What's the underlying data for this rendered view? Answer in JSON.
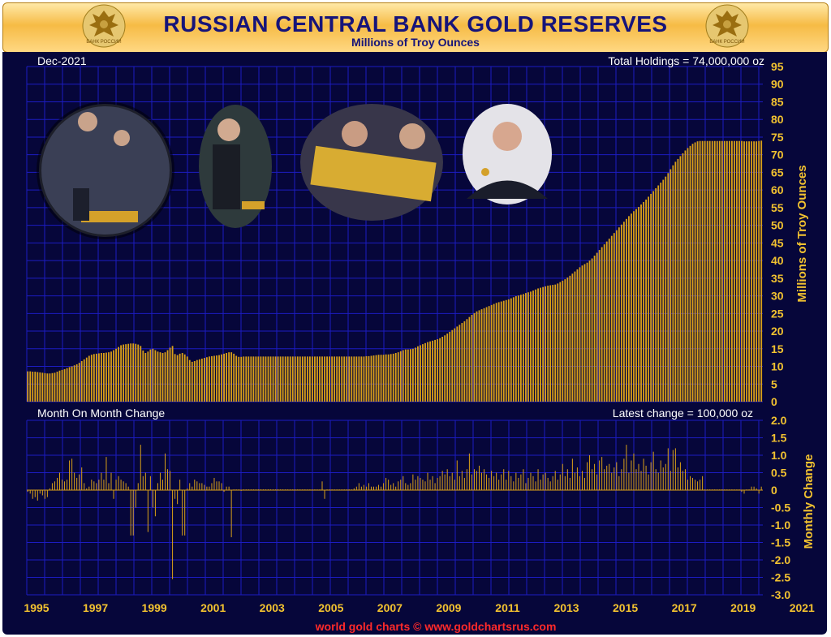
{
  "header": {
    "title": "RUSSIAN CENTRAL BANK GOLD RESERVES",
    "subtitle": "Millions of Troy Ounces",
    "seal_left_text": "БАНК РОССИИ",
    "seal_right_text": "БАНК РОССИИ"
  },
  "annotations": {
    "date": "Dec-2021",
    "total_holdings": "Total Holdings = 74,000,000 oz",
    "panel2_title": "Month On Month Change",
    "latest_change": "Latest change = 100,000 oz",
    "footer": "world gold charts © www.goldchartsrus.com"
  },
  "colors": {
    "bar": "#d9a018",
    "background": "#06063a",
    "grid": "#1c1cc2",
    "tick": "#f2c230",
    "footer": "#ff2a2a"
  },
  "photos": [
    {
      "name": "photo-1",
      "description_icon": "officials-with-gold-bars"
    },
    {
      "name": "photo-2",
      "description_icon": "official-with-gold-bar"
    },
    {
      "name": "photo-3",
      "description_icon": "officials-gold-bar-closeup"
    },
    {
      "name": "photo-4",
      "description_icon": "official-with-gold-coin"
    }
  ],
  "chart_data": [
    {
      "type": "bar",
      "ylabel": "Millions of Troy Ounces",
      "ylim": [
        0,
        95
      ],
      "yticks": [
        "0",
        "5",
        "10",
        "15",
        "20",
        "25",
        "30",
        "35",
        "40",
        "45",
        "50",
        "55",
        "60",
        "65",
        "70",
        "75",
        "80",
        "85",
        "90",
        "95"
      ],
      "xticks": [
        "1995",
        "1997",
        "1999",
        "2001",
        "2003",
        "2005",
        "2007",
        "2009",
        "2011",
        "2013",
        "2015",
        "2017",
        "2019",
        "2021"
      ],
      "x_start": "1995-01",
      "x_end": "2021-12",
      "grid": true,
      "series": [
        {
          "values": [
            8.6,
            8.6,
            8.5,
            8.5,
            8.4,
            8.3,
            8.2,
            8.1,
            8.0,
            8.0,
            8.1,
            8.2,
            8.5,
            8.8,
            9.0,
            9.2,
            9.5,
            9.8,
            10.0,
            10.3,
            10.6,
            11.0,
            11.5,
            12.0,
            12.5,
            13.0,
            13.3,
            13.5,
            13.6,
            13.7,
            13.8,
            13.8,
            13.9,
            14.0,
            14.2,
            14.6,
            15.0,
            15.5,
            16.0,
            16.2,
            16.3,
            16.4,
            16.5,
            16.5,
            16.4,
            16.2,
            15.8,
            14.5,
            13.8,
            14.2,
            14.8,
            15.0,
            14.6,
            14.2,
            14.0,
            13.8,
            14.0,
            14.6,
            15.3,
            15.8,
            13.5,
            13.2,
            13.6,
            13.8,
            13.4,
            12.8,
            11.8,
            11.3,
            11.5,
            11.8,
            12.0,
            12.2,
            12.4,
            12.6,
            12.8,
            12.9,
            13.0,
            13.1,
            13.2,
            13.4,
            13.6,
            13.8,
            14.0,
            14.0,
            13.6,
            13.0,
            12.7,
            12.7,
            12.8,
            12.8,
            12.8,
            12.8,
            12.8,
            12.8,
            12.8,
            12.8,
            12.8,
            12.8,
            12.8,
            12.8,
            12.8,
            12.8,
            12.8,
            12.8,
            12.8,
            12.8,
            12.8,
            12.8,
            12.8,
            12.8,
            12.8,
            12.8,
            12.8,
            12.8,
            12.8,
            12.8,
            12.8,
            12.8,
            12.8,
            12.8,
            12.8,
            12.8,
            12.8,
            12.8,
            12.8,
            12.8,
            12.8,
            12.8,
            12.8,
            12.8,
            12.8,
            12.8,
            12.8,
            12.8,
            12.8,
            12.8,
            12.8,
            12.8,
            12.9,
            12.9,
            13.0,
            13.1,
            13.2,
            13.3,
            13.3,
            13.3,
            13.4,
            13.4,
            13.5,
            13.6,
            13.8,
            14.0,
            14.3,
            14.6,
            14.8,
            14.8,
            14.9,
            15.0,
            15.3,
            15.7,
            16.0,
            16.3,
            16.6,
            16.9,
            17.1,
            17.3,
            17.5,
            17.7,
            18.0,
            18.4,
            18.8,
            19.3,
            19.8,
            20.3,
            20.8,
            21.3,
            21.8,
            22.3,
            22.8,
            23.4,
            24.0,
            24.6,
            25.1,
            25.6,
            25.9,
            26.2,
            26.5,
            26.8,
            27.1,
            27.4,
            27.7,
            28.0,
            28.2,
            28.4,
            28.6,
            28.8,
            29.0,
            29.3,
            29.6,
            29.9,
            30.1,
            30.3,
            30.5,
            30.8,
            31.0,
            31.2,
            31.5,
            31.8,
            32.1,
            32.3,
            32.5,
            32.7,
            32.9,
            33.0,
            33.1,
            33.2,
            33.5,
            33.9,
            34.3,
            34.7,
            35.2,
            35.7,
            36.3,
            36.9,
            37.5,
            38.1,
            38.6,
            39.0,
            39.4,
            40.0,
            40.6,
            41.4,
            42.2,
            43.0,
            43.8,
            44.6,
            45.4,
            46.2,
            47.0,
            47.8,
            48.6,
            49.4,
            50.2,
            51.0,
            51.8,
            52.6,
            53.3,
            54.0,
            54.6,
            55.2,
            55.9,
            56.6,
            57.3,
            58.1,
            58.9,
            59.7,
            60.5,
            61.3,
            62.1,
            62.9,
            63.8,
            64.8,
            65.9,
            67.0,
            68.0,
            68.8,
            69.6,
            70.4,
            71.2,
            71.9,
            72.5,
            73.1,
            73.5,
            73.8,
            73.9,
            73.9,
            73.9,
            73.9,
            73.9,
            73.9,
            73.9,
            73.9,
            73.9,
            73.9,
            73.9,
            73.9,
            73.9,
            73.9,
            73.9,
            73.9,
            73.9,
            73.9,
            73.8,
            73.8,
            73.8,
            73.8,
            73.8,
            73.8,
            73.9,
            74.0
          ]
        }
      ]
    },
    {
      "type": "bar",
      "ylabel": "Monthly Change",
      "ylim": [
        -3.0,
        2.0
      ],
      "yticks": [
        "2.0",
        "1.5",
        "1.0",
        "0.5",
        "0",
        "-0.5",
        "-1.0",
        "-1.5",
        "-2.0",
        "-2.5",
        "-3.0"
      ],
      "xticks": [
        "1995",
        "1997",
        "1999",
        "2001",
        "2003",
        "2005",
        "2007",
        "2009",
        "2011",
        "2013",
        "2015",
        "2017",
        "2019",
        "2021"
      ],
      "x_start": "1995-01",
      "x_end": "2021-12",
      "grid": true,
      "series": [
        {
          "values": [
            -0.05,
            -0.1,
            -0.25,
            -0.2,
            -0.3,
            -0.1,
            -0.15,
            -0.25,
            -0.2,
            0.05,
            0.2,
            0.25,
            0.35,
            0.5,
            0.3,
            0.25,
            0.3,
            0.85,
            0.9,
            0.5,
            0.35,
            0.45,
            0.65,
            0.2,
            0.05,
            0.1,
            0.3,
            0.25,
            0.2,
            0.3,
            0.5,
            0.3,
            0.95,
            0.2,
            0.5,
            -0.25,
            0.3,
            0.4,
            0.3,
            0.25,
            0.2,
            0.1,
            -1.3,
            -1.3,
            -0.5,
            0.2,
            1.3,
            0.4,
            0.5,
            -1.2,
            0.4,
            -0.5,
            -0.75,
            0.2,
            0.5,
            0.3,
            1.05,
            0.6,
            0.55,
            -2.55,
            -0.25,
            -0.4,
            0.3,
            -1.3,
            -1.3,
            0.05,
            0.2,
            0.1,
            0.3,
            0.25,
            0.2,
            0.2,
            0.15,
            0.1,
            0.1,
            0.2,
            0.35,
            0.25,
            0.25,
            0.2,
            -0.05,
            0.1,
            0.1,
            -1.35,
            0.02,
            0.02,
            0.02,
            -0.02,
            0.02,
            0.02,
            0.02,
            0.02,
            0.02,
            0.02,
            0.02,
            0.02,
            0.02,
            0.02,
            0.02,
            0.02,
            0.02,
            0.02,
            0.02,
            0.02,
            0.02,
            0.02,
            0.02,
            0.02,
            0.02,
            0.02,
            0.02,
            0.02,
            0.02,
            0.02,
            0.02,
            0.02,
            0.02,
            0.02,
            0.02,
            0.02,
            0.25,
            -0.25,
            0.02,
            0.02,
            0.02,
            0.02,
            0.02,
            0.02,
            0.02,
            0.02,
            0.02,
            0.02,
            0.02,
            0.05,
            0.1,
            0.2,
            0.1,
            0.15,
            0.1,
            0.2,
            0.1,
            0.1,
            0.1,
            0.15,
            0.1,
            0.2,
            0.35,
            0.3,
            0.15,
            0.2,
            0.1,
            0.25,
            0.3,
            0.4,
            0.2,
            0.15,
            0.2,
            0.45,
            0.3,
            0.4,
            0.35,
            0.3,
            0.25,
            0.5,
            0.3,
            0.4,
            0.2,
            0.35,
            0.4,
            0.55,
            0.45,
            0.6,
            0.4,
            0.5,
            0.3,
            0.85,
            0.4,
            0.55,
            0.35,
            0.6,
            1.05,
            0.45,
            0.6,
            0.55,
            0.7,
            0.5,
            0.6,
            0.45,
            0.35,
            0.55,
            0.4,
            0.5,
            0.3,
            0.45,
            0.6,
            0.3,
            0.55,
            0.4,
            0.25,
            0.5,
            0.35,
            0.45,
            0.6,
            0.2,
            0.35,
            0.5,
            0.4,
            0.25,
            0.6,
            0.3,
            0.45,
            0.5,
            0.35,
            0.25,
            0.4,
            0.55,
            0.3,
            0.45,
            0.75,
            0.4,
            0.6,
            0.35,
            0.9,
            0.5,
            0.65,
            0.4,
            0.55,
            0.35,
            0.8,
            1.0,
            0.6,
            0.75,
            0.45,
            0.85,
            0.95,
            0.6,
            0.7,
            0.75,
            0.5,
            0.65,
            0.8,
            0.4,
            0.6,
            0.9,
            1.3,
            0.5,
            0.85,
            1.05,
            0.6,
            0.75,
            0.55,
            0.9,
            0.7,
            0.45,
            0.8,
            1.1,
            0.6,
            0.5,
            0.85,
            0.65,
            0.75,
            1.2,
            0.55,
            1.15,
            1.2,
            0.65,
            0.8,
            0.55,
            0.6,
            0.3,
            0.4,
            0.35,
            0.3,
            0.25,
            0.3,
            0.4,
            0.02,
            0.02,
            0.02,
            0.02,
            0.02,
            0.02,
            0.02,
            0.02,
            0.02,
            0.02,
            0.02,
            0.02,
            0.02,
            0.02,
            0.02,
            -0.05,
            -0.1,
            0.02,
            0.02,
            0.1,
            0.1,
            0.05,
            -0.1,
            0.1
          ]
        }
      ]
    }
  ],
  "footer": "world gold charts © www.goldchartsrus.com"
}
